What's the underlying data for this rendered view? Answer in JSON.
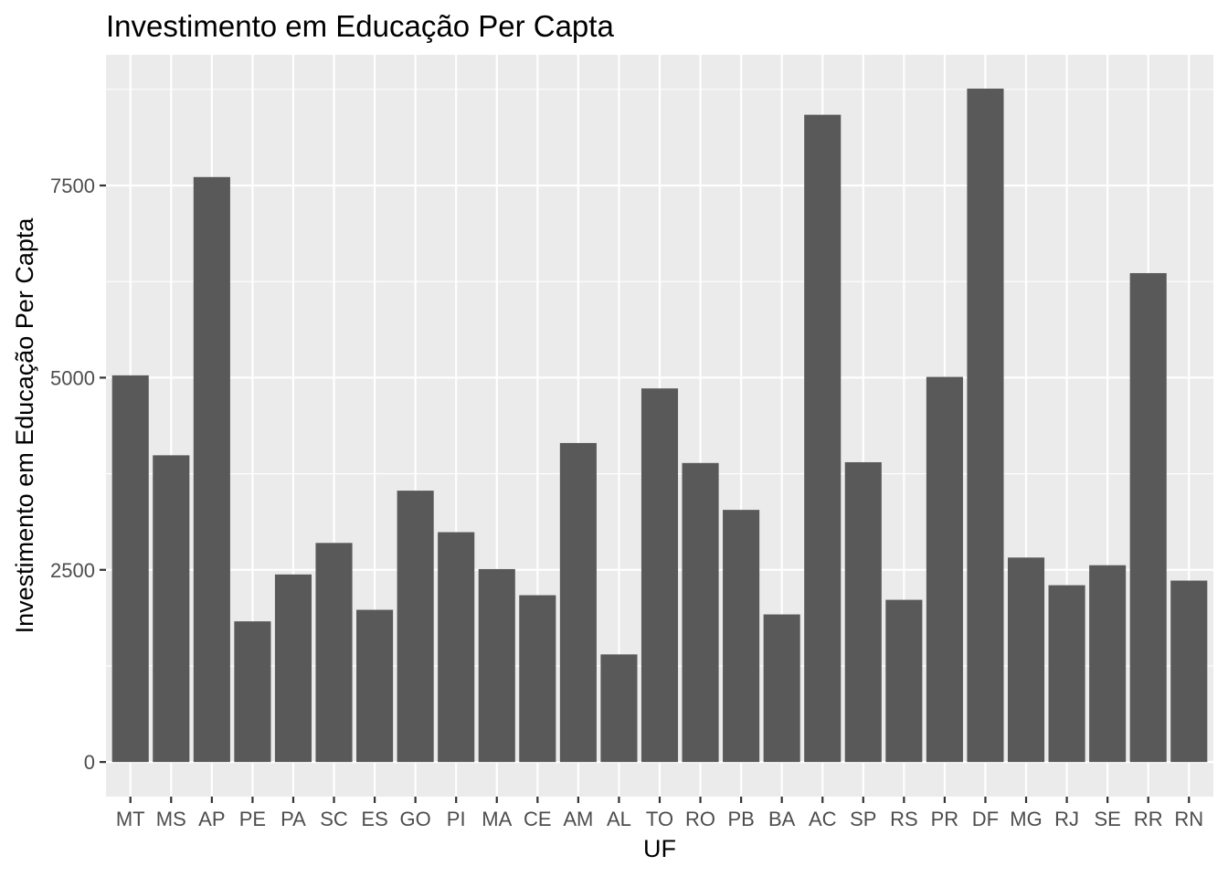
{
  "chart_data": {
    "type": "bar",
    "title": "Investimento em Educação Per Capta",
    "xlabel": "UF",
    "ylabel": "Investimento em Educação Per Capta",
    "categories": [
      "MT",
      "MS",
      "AP",
      "PE",
      "PA",
      "SC",
      "ES",
      "GO",
      "PI",
      "MA",
      "CE",
      "AM",
      "AL",
      "TO",
      "RO",
      "PB",
      "BA",
      "AC",
      "SP",
      "RS",
      "PR",
      "DF",
      "MG",
      "RJ",
      "SE",
      "RR",
      "RN"
    ],
    "values": [
      5030,
      3990,
      7610,
      1830,
      2440,
      2850,
      1980,
      3530,
      2990,
      2510,
      2170,
      4150,
      1400,
      4860,
      3890,
      3280,
      1920,
      8420,
      3900,
      2110,
      5010,
      8760,
      2660,
      2300,
      2560,
      6360,
      2360
    ],
    "ylim": [
      -450,
      9200
    ],
    "yticks": [
      0,
      2500,
      5000,
      7500
    ],
    "ytick_labels": [
      "0",
      "2500",
      "5000",
      "7500"
    ],
    "grid": true,
    "colors": {
      "bar": "#595959",
      "panel_background": "#ebebeb",
      "grid": "#ffffff",
      "tick": "#333333"
    }
  }
}
